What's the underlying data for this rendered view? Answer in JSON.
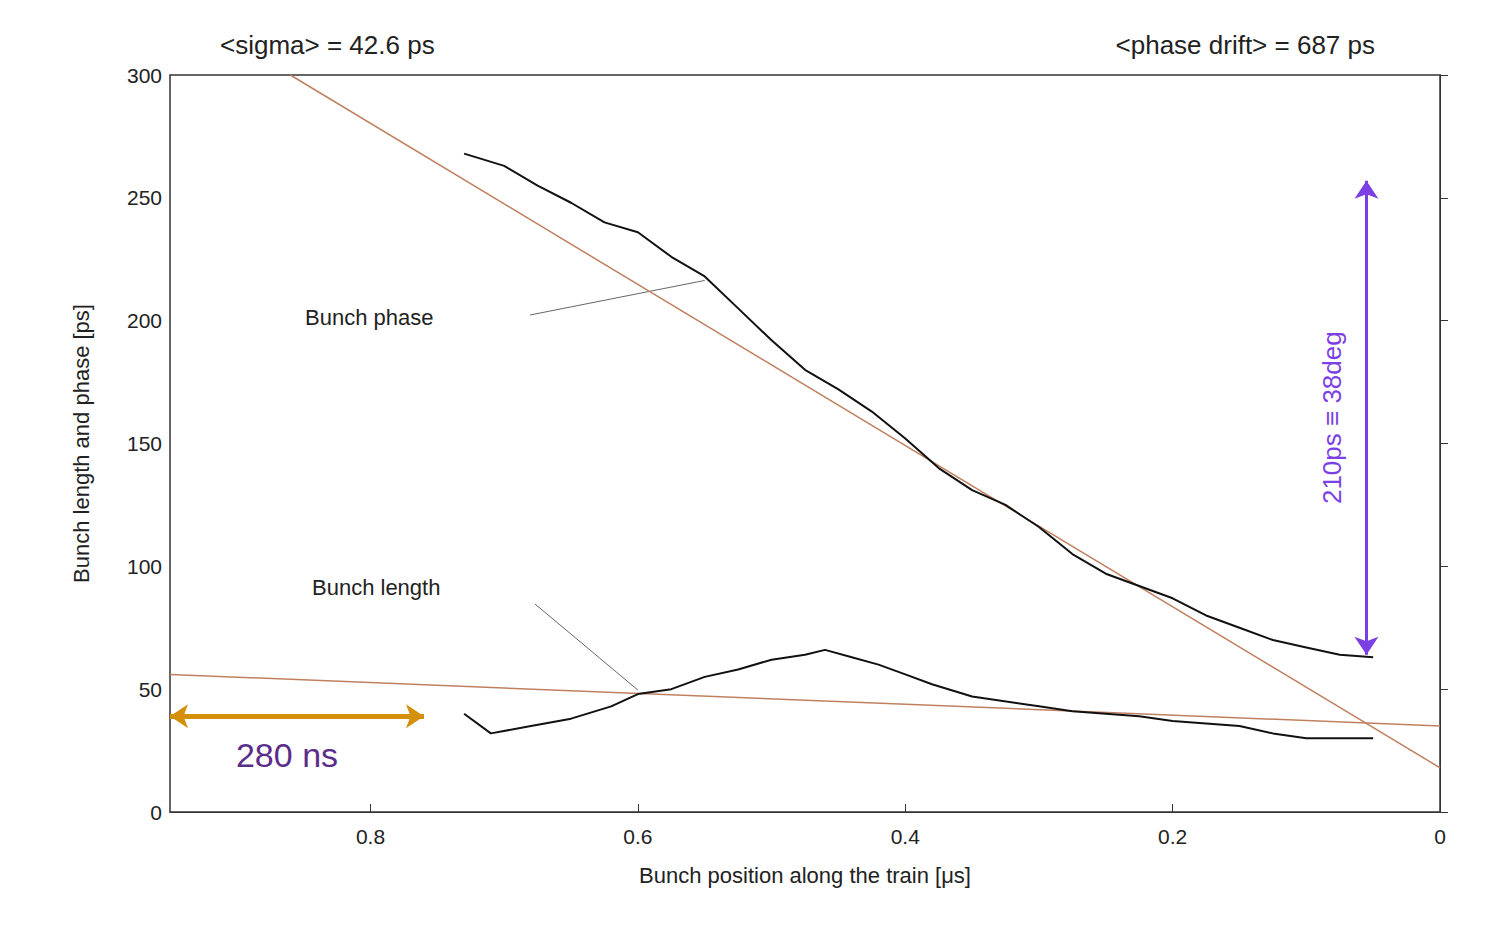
{
  "chart_data": {
    "type": "line",
    "title_left": "<sigma> = 42.6 ps",
    "title_right": "<phase drift> = 687 ps",
    "x_label": "Bunch position along the train [μs]",
    "y_label": "Bunch length and phase [ps]",
    "xlim": [
      0.95,
      0
    ],
    "xticks": [
      0.8,
      0.6,
      0.4,
      0.2,
      0
    ],
    "ylim": [
      0,
      300
    ],
    "yticks": [
      0,
      50,
      100,
      150,
      200,
      250,
      300
    ],
    "grid": false,
    "series": [
      {
        "name": "Bunch phase",
        "color": "#111111",
        "x": [
          0.73,
          0.7,
          0.675,
          0.65,
          0.625,
          0.6,
          0.575,
          0.55,
          0.525,
          0.5,
          0.475,
          0.45,
          0.425,
          0.4,
          0.375,
          0.35,
          0.325,
          0.3,
          0.275,
          0.25,
          0.225,
          0.2,
          0.175,
          0.15,
          0.125,
          0.1,
          0.075,
          0.05
        ],
        "values": [
          268,
          263,
          255,
          248,
          240,
          236,
          226,
          218,
          205,
          192,
          180,
          172,
          163,
          152,
          140,
          131,
          125,
          116,
          105,
          97,
          92,
          87,
          80,
          75,
          70,
          67,
          64,
          63
        ]
      },
      {
        "name": "Bunch length",
        "color": "#111111",
        "x": [
          0.73,
          0.71,
          0.68,
          0.65,
          0.62,
          0.6,
          0.575,
          0.55,
          0.525,
          0.5,
          0.475,
          0.46,
          0.44,
          0.42,
          0.4,
          0.38,
          0.35,
          0.3,
          0.275,
          0.25,
          0.225,
          0.2,
          0.175,
          0.15,
          0.125,
          0.1,
          0.075,
          0.05
        ],
        "values": [
          40,
          32,
          35,
          38,
          43,
          48,
          50,
          55,
          58,
          62,
          64,
          66,
          63,
          60,
          56,
          52,
          47,
          43,
          41,
          40,
          39,
          37,
          36,
          35,
          32,
          30,
          30,
          30
        ]
      }
    ],
    "fits": [
      {
        "color": "#c08060",
        "x": [
          0.86,
          0
        ],
        "values": [
          300,
          18
        ]
      },
      {
        "color": "#c08060",
        "x": [
          0.95,
          0
        ],
        "values": [
          56,
          35
        ]
      }
    ],
    "annotations": [
      {
        "text": "210ps ≡ 38deg",
        "color": "#7b3fe4",
        "x": [
          0.055,
          0.055
        ],
        "y": [
          257,
          64
        ]
      },
      {
        "text": "280 ns",
        "color": "#d4900a",
        "text_color": "#5b2d8a",
        "x": [
          0.95,
          0.76
        ],
        "y": [
          39,
          39
        ]
      }
    ]
  }
}
